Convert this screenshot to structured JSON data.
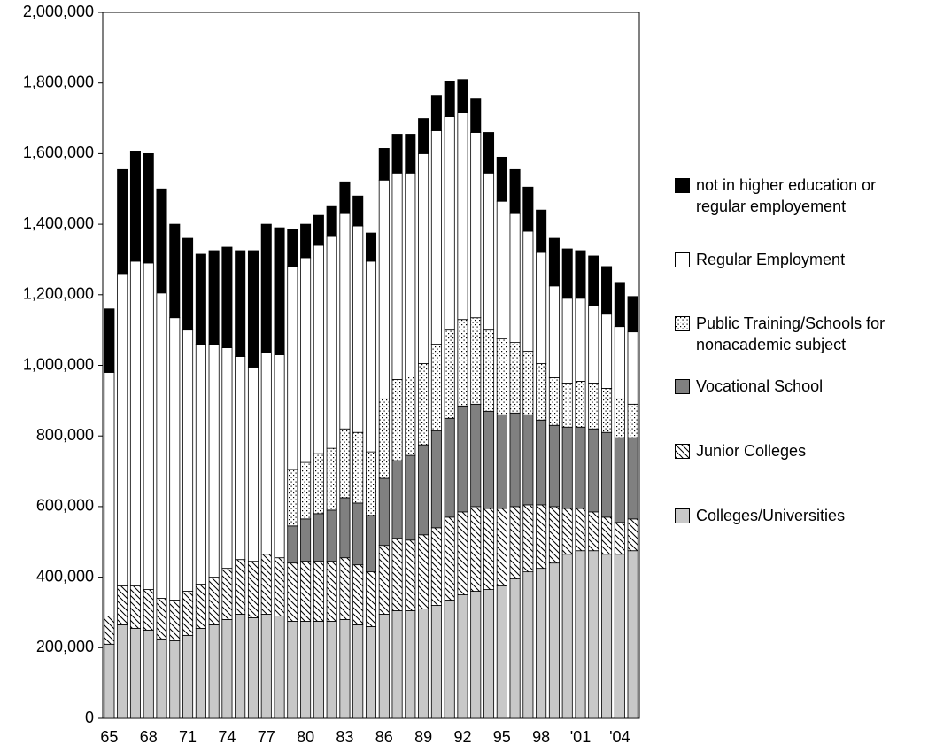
{
  "chart_data": {
    "type": "stacked_bar",
    "categories": [
      "65",
      null,
      null,
      "68",
      null,
      null,
      "71",
      null,
      null,
      "74",
      null,
      null,
      "77",
      null,
      null,
      "80",
      null,
      null,
      "83",
      null,
      null,
      "86",
      null,
      null,
      "89",
      null,
      null,
      "92",
      null,
      null,
      "95",
      null,
      null,
      "98",
      null,
      null,
      "'01",
      null,
      null,
      "'04",
      null
    ],
    "series": [
      {
        "name": "Colleges/Universities",
        "color": "#c8c8c8",
        "pattern": "solid",
        "values": [
          210000,
          265000,
          255000,
          250000,
          225000,
          220000,
          235000,
          255000,
          265000,
          280000,
          295000,
          285000,
          295000,
          290000,
          275000,
          275000,
          275000,
          275000,
          280000,
          265000,
          260000,
          295000,
          305000,
          305000,
          310000,
          320000,
          335000,
          350000,
          360000,
          365000,
          375000,
          395000,
          415000,
          425000,
          440000,
          465000,
          475000,
          475000,
          465000,
          465000,
          475000
        ]
      },
      {
        "name": "Junior Colleges",
        "color": "#000000",
        "pattern": "hatch",
        "values": [
          80000,
          110000,
          120000,
          115000,
          115000,
          115000,
          125000,
          125000,
          135000,
          145000,
          155000,
          160000,
          170000,
          165000,
          165000,
          170000,
          170000,
          170000,
          175000,
          170000,
          155000,
          195000,
          205000,
          200000,
          210000,
          220000,
          235000,
          235000,
          240000,
          230000,
          220000,
          205000,
          190000,
          180000,
          160000,
          130000,
          120000,
          110000,
          105000,
          90000,
          90000
        ]
      },
      {
        "name": "Vocational School",
        "color": "#808080",
        "pattern": "solid",
        "values": [
          null,
          null,
          null,
          null,
          null,
          null,
          null,
          null,
          null,
          null,
          null,
          null,
          null,
          null,
          105000,
          120000,
          135000,
          145000,
          170000,
          175000,
          160000,
          190000,
          220000,
          240000,
          255000,
          275000,
          280000,
          300000,
          290000,
          275000,
          265000,
          265000,
          255000,
          240000,
          230000,
          230000,
          230000,
          235000,
          240000,
          240000,
          230000
        ]
      },
      {
        "name": "Public Training/Schools for nonacademic subject",
        "color": "#000000",
        "pattern": "dots",
        "values": [
          null,
          null,
          null,
          null,
          null,
          null,
          null,
          null,
          null,
          null,
          null,
          null,
          null,
          null,
          160000,
          160000,
          170000,
          175000,
          195000,
          200000,
          180000,
          225000,
          230000,
          225000,
          230000,
          245000,
          250000,
          245000,
          245000,
          230000,
          215000,
          200000,
          180000,
          160000,
          135000,
          125000,
          130000,
          130000,
          125000,
          110000,
          95000
        ]
      },
      {
        "name": "Regular Employment",
        "color": "#ffffff",
        "pattern": "solid",
        "values": [
          690000,
          885000,
          920000,
          925000,
          865000,
          800000,
          740000,
          680000,
          660000,
          625000,
          575000,
          550000,
          570000,
          575000,
          575000,
          580000,
          590000,
          600000,
          610000,
          585000,
          540000,
          620000,
          585000,
          575000,
          595000,
          605000,
          605000,
          585000,
          525000,
          445000,
          390000,
          365000,
          340000,
          315000,
          260000,
          240000,
          235000,
          220000,
          210000,
          205000,
          205000
        ]
      },
      {
        "name": "not in higher education or regular employement",
        "color": "#000000",
        "pattern": "solid",
        "values": [
          180000,
          295000,
          310000,
          310000,
          295000,
          265000,
          260000,
          255000,
          265000,
          285000,
          300000,
          330000,
          365000,
          360000,
          105000,
          95000,
          85000,
          85000,
          90000,
          85000,
          80000,
          90000,
          110000,
          110000,
          100000,
          100000,
          100000,
          95000,
          95000,
          115000,
          125000,
          125000,
          125000,
          120000,
          135000,
          140000,
          135000,
          140000,
          135000,
          125000,
          100000
        ]
      }
    ],
    "ylim": [
      0,
      2000000
    ],
    "yticks": [
      0,
      {
        "value": 200000,
        "label": "200,000"
      },
      {
        "value": 400000,
        "label": "400,000"
      },
      {
        "value": 600000,
        "label": "600,000"
      },
      {
        "value": 800000,
        "label": "800,000"
      },
      {
        "value": 1000000,
        "label": "1,000,000"
      },
      {
        "value": 1200000,
        "label": "1,200,000"
      },
      {
        "value": 1400000,
        "label": "1,400,000"
      },
      {
        "value": 1600000,
        "label": "1,600,000"
      },
      {
        "value": 1800000,
        "label": "1,800,000"
      },
      {
        "value": 2000000,
        "label": "2,000,000"
      }
    ],
    "grid": false,
    "legend": "right"
  }
}
